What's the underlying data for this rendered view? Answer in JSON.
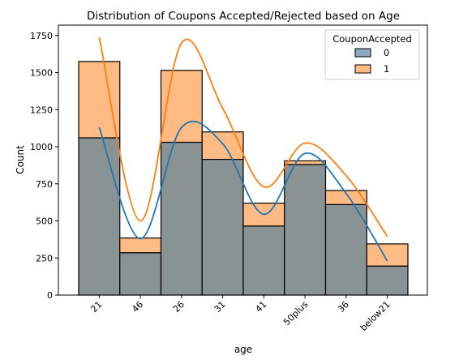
{
  "chart_data": {
    "type": "bar",
    "title": "Distribution of Coupons Accepted/Rejected based on Age",
    "xlabel": "age",
    "ylabel": "Count",
    "categories": [
      "21",
      "46",
      "26",
      "31",
      "41",
      "50plus",
      "36",
      "below21"
    ],
    "ylim": [
      0,
      1820
    ],
    "yticks": [
      0,
      250,
      500,
      750,
      1000,
      1250,
      1500,
      1750
    ],
    "x_tick_rotation": 45,
    "stacked": false,
    "legend": {
      "title": "CouponAccepted",
      "placement": "top-right",
      "entries": [
        "0",
        "1"
      ]
    },
    "series": [
      {
        "name": "0",
        "color": "#1f77b4",
        "fill": "#8faabf",
        "values": [
          1060,
          285,
          1030,
          915,
          465,
          880,
          610,
          195
        ],
        "kde": [
          1130,
          380,
          1130,
          1020,
          545,
          955,
          685,
          230
        ]
      },
      {
        "name": "1",
        "color": "#ff7f0e",
        "fill": "#ffbb83",
        "values": [
          1575,
          385,
          1515,
          1100,
          620,
          905,
          705,
          345
        ],
        "kde": [
          1740,
          500,
          1700,
          1260,
          730,
          1025,
          805,
          395
        ]
      }
    ],
    "overlap_fill": "#899394",
    "grid": false
  }
}
